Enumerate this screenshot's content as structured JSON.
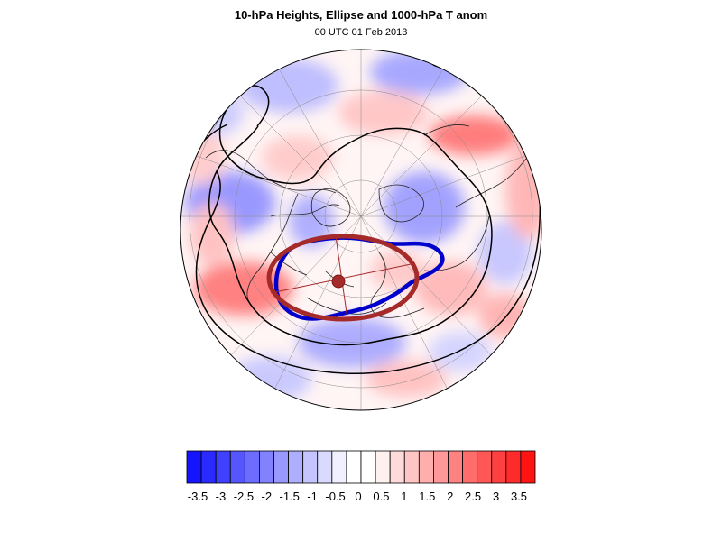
{
  "title": "10-hPa Heights, Ellipse and 1000-hPa T anom",
  "subtitle": "00 UTC 01 Feb 2013",
  "projection": "orthographic-north-polar",
  "colors": {
    "ellipse": "#a52a2a",
    "blue_contour": "#0000cc",
    "height_contour": "#000000",
    "cold": "#0000ff",
    "warm": "#ff0000"
  },
  "colorbar": {
    "tick_labels": [
      "-3.5",
      "-3",
      "-2.5",
      "-2",
      "-1.5",
      "-1",
      "-0.5",
      "0",
      "0.5",
      "1",
      "1.5",
      "2",
      "2.5",
      "3",
      "3.5"
    ],
    "fill_colors": [
      "#1414ff",
      "#2a2aff",
      "#4040ff",
      "#5656ff",
      "#6c6cff",
      "#8282ff",
      "#9898ff",
      "#aeaeff",
      "#c4c4ff",
      "#dadaff",
      "#f0f0ff",
      "#ffffff",
      "#ffffff",
      "#fff0f0",
      "#ffdada",
      "#ffc4c4",
      "#ffaeae",
      "#ff9898",
      "#ff8282",
      "#ff6c6c",
      "#ff5656",
      "#ff4040",
      "#ff2a2a",
      "#ff1414"
    ]
  }
}
